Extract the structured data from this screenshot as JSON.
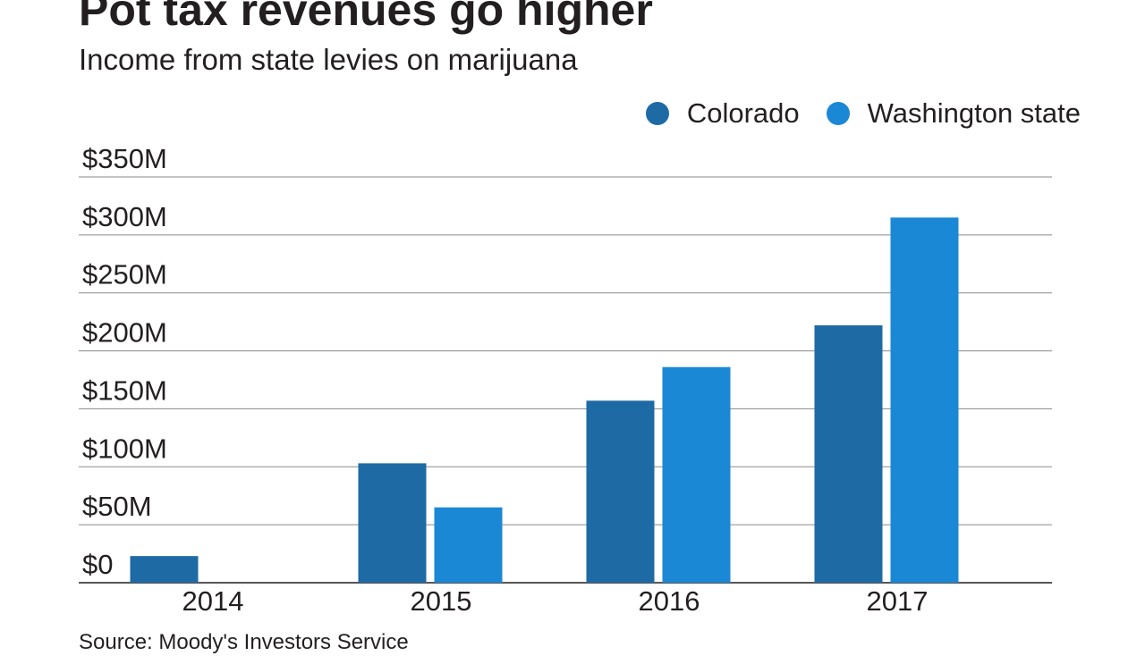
{
  "chart_data": {
    "type": "bar",
    "title": "Pot tax revenues go higher",
    "subtitle": "Income from state levies on marijuana",
    "source": "Source: Moody's Investors Service",
    "categories": [
      "2014",
      "2015",
      "2016",
      "2017"
    ],
    "series": [
      {
        "name": "Colorado",
        "color": "#1d6aa5",
        "values": [
          23,
          103,
          157,
          222
        ]
      },
      {
        "name": "Washington state",
        "color": "#1b88d6",
        "values": [
          0,
          65,
          186,
          315
        ]
      }
    ],
    "ylim": [
      0,
      350
    ],
    "yticks": [
      0,
      50,
      100,
      150,
      200,
      250,
      300,
      350
    ],
    "ytick_labels": [
      "$0",
      "$50M",
      "$100M",
      "$150M",
      "$200M",
      "$250M",
      "$300M",
      "$350M"
    ],
    "xlabel": "",
    "ylabel": "",
    "legend": "top-right",
    "grid": true
  }
}
